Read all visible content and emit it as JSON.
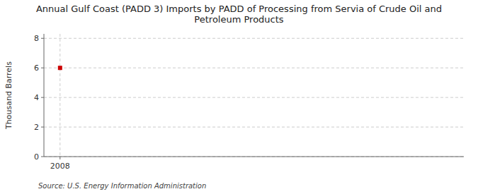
{
  "chart_data": {
    "type": "scatter",
    "title": "Annual Gulf Coast (PADD 3) Imports by PADD of Processing from Servia of Crude Oil and\nPetroleum Products",
    "y_label": "Thousand Barrels",
    "source": "Source: U.S. Energy Information Administration",
    "x": [
      2008
    ],
    "values": [
      6
    ],
    "color": "#cc0000",
    "marker": "square",
    "xlim": [
      2007.6,
      2018
    ],
    "xticks": [
      2008
    ],
    "ylim": [
      0,
      8.3
    ],
    "yticks": [
      0,
      2,
      4,
      6,
      8
    ],
    "grid": true
  }
}
